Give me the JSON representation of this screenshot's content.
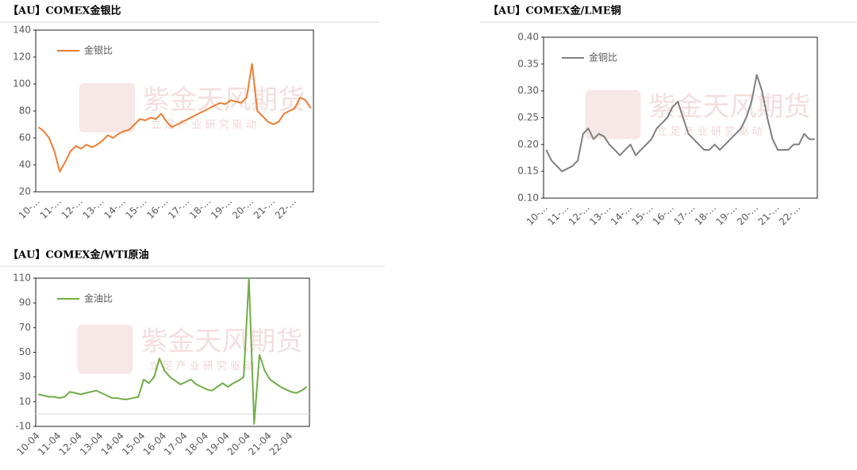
{
  "watermark": {
    "brand": "紫金天风期货",
    "slogan": "立 足 产 业 研 究 驱 动"
  },
  "chart_data": [
    {
      "type": "line",
      "title": "【AU】COMEX金银比",
      "x": [
        "10-04",
        "10-07",
        "10-10",
        "11-01",
        "11-04",
        "11-07",
        "11-10",
        "12-01",
        "12-04",
        "12-07",
        "12-10",
        "13-01",
        "13-04",
        "13-07",
        "13-10",
        "14-01",
        "14-04",
        "14-07",
        "14-10",
        "15-01",
        "15-04",
        "15-07",
        "15-10",
        "16-01",
        "16-04",
        "16-07",
        "16-10",
        "17-01",
        "17-04",
        "17-07",
        "17-10",
        "18-01",
        "18-04",
        "18-07",
        "18-10",
        "19-01",
        "19-04",
        "19-07",
        "19-10",
        "20-01",
        "20-04",
        "20-07",
        "20-10",
        "21-01",
        "21-04",
        "21-07",
        "21-10",
        "22-01",
        "22-04",
        "22-07",
        "22-10",
        "23-01"
      ],
      "series": [
        {
          "name": "金银比",
          "color": "#ed7d31",
          "values": [
            68,
            65,
            60,
            50,
            35,
            42,
            50,
            54,
            52,
            55,
            53,
            55,
            58,
            62,
            60,
            63,
            65,
            66,
            70,
            74,
            73,
            75,
            74,
            78,
            72,
            68,
            70,
            72,
            74,
            76,
            78,
            80,
            82,
            84,
            86,
            85,
            88,
            87,
            86,
            90,
            115,
            80,
            76,
            72,
            70,
            72,
            78,
            80,
            82,
            90,
            88,
            82
          ]
        }
      ],
      "ylim": [
        20,
        140
      ],
      "yticks": [
        20,
        40,
        60,
        80,
        100,
        120,
        140
      ],
      "xticks": [
        {
          "value": "10-04",
          "label": "10-…"
        },
        {
          "value": "11-04",
          "label": "11-…"
        },
        {
          "value": "12-04",
          "label": "12-…"
        },
        {
          "value": "13-04",
          "label": "13-…"
        },
        {
          "value": "14-04",
          "label": "14-…"
        },
        {
          "value": "15-04",
          "label": "15-…"
        },
        {
          "value": "16-04",
          "label": "16-…"
        },
        {
          "value": "17-04",
          "label": "17-…"
        },
        {
          "value": "18-04",
          "label": "18-…"
        },
        {
          "value": "19-04",
          "label": "19-…"
        },
        {
          "value": "20-04",
          "label": "20-…"
        },
        {
          "value": "21-04",
          "label": "21-…"
        },
        {
          "value": "22-04",
          "label": "22-…"
        }
      ]
    },
    {
      "type": "line",
      "title": "【AU】COMEX金/LME铜",
      "x": [
        "10-04",
        "10-07",
        "10-10",
        "11-01",
        "11-04",
        "11-07",
        "11-10",
        "12-01",
        "12-04",
        "12-07",
        "12-10",
        "13-01",
        "13-04",
        "13-07",
        "13-10",
        "14-01",
        "14-04",
        "14-07",
        "14-10",
        "15-01",
        "15-04",
        "15-07",
        "15-10",
        "16-01",
        "16-04",
        "16-07",
        "16-10",
        "17-01",
        "17-04",
        "17-07",
        "17-10",
        "18-01",
        "18-04",
        "18-07",
        "18-10",
        "19-01",
        "19-04",
        "19-07",
        "19-10",
        "20-01",
        "20-04",
        "20-07",
        "20-10",
        "21-01",
        "21-04",
        "21-07",
        "21-10",
        "22-01",
        "22-04",
        "22-07",
        "22-10",
        "23-01"
      ],
      "series": [
        {
          "name": "金铜比",
          "color": "#7f7f7f",
          "values": [
            0.19,
            0.17,
            0.16,
            0.15,
            0.155,
            0.16,
            0.17,
            0.22,
            0.23,
            0.21,
            0.22,
            0.215,
            0.2,
            0.19,
            0.18,
            0.19,
            0.2,
            0.18,
            0.19,
            0.2,
            0.21,
            0.23,
            0.24,
            0.25,
            0.27,
            0.28,
            0.25,
            0.22,
            0.21,
            0.2,
            0.19,
            0.19,
            0.2,
            0.19,
            0.2,
            0.21,
            0.22,
            0.23,
            0.25,
            0.28,
            0.33,
            0.3,
            0.25,
            0.21,
            0.19,
            0.19,
            0.19,
            0.2,
            0.2,
            0.22,
            0.21,
            0.21
          ]
        }
      ],
      "ylim": [
        0.1,
        0.4
      ],
      "yticks": [
        {
          "value": 0.1,
          "label": "0.10"
        },
        {
          "value": 0.15,
          "label": "0.15"
        },
        {
          "value": 0.2,
          "label": "0.20"
        },
        {
          "value": 0.25,
          "label": "0.25"
        },
        {
          "value": 0.3,
          "label": "0.30"
        },
        {
          "value": 0.35,
          "label": "0.35"
        },
        {
          "value": 0.4,
          "label": "0.40"
        }
      ],
      "xticks": [
        {
          "value": "10-04",
          "label": "10-…"
        },
        {
          "value": "11-04",
          "label": "11-…"
        },
        {
          "value": "12-04",
          "label": "12-…"
        },
        {
          "value": "13-04",
          "label": "13-…"
        },
        {
          "value": "14-04",
          "label": "14-…"
        },
        {
          "value": "15-04",
          "label": "15-…"
        },
        {
          "value": "16-04",
          "label": "16-…"
        },
        {
          "value": "17-04",
          "label": "17-…"
        },
        {
          "value": "18-04",
          "label": "18-…"
        },
        {
          "value": "19-04",
          "label": "19-…"
        },
        {
          "value": "20-04",
          "label": "20-…"
        },
        {
          "value": "21-04",
          "label": "21-…"
        },
        {
          "value": "22-04",
          "label": "22-…"
        }
      ]
    },
    {
      "type": "line",
      "title": "【AU】COMEX金/WTI原油",
      "x": [
        "10-04",
        "10-07",
        "10-10",
        "11-01",
        "11-04",
        "11-07",
        "11-10",
        "12-01",
        "12-04",
        "12-07",
        "12-10",
        "13-01",
        "13-04",
        "13-07",
        "13-10",
        "14-01",
        "14-04",
        "14-07",
        "14-10",
        "15-01",
        "15-04",
        "15-07",
        "15-10",
        "16-01",
        "16-04",
        "16-07",
        "16-10",
        "17-01",
        "17-04",
        "17-07",
        "17-10",
        "18-01",
        "18-04",
        "18-07",
        "18-10",
        "19-01",
        "19-04",
        "19-07",
        "19-10",
        "20-01",
        "20-04",
        "20-07",
        "20-10",
        "21-01",
        "21-04",
        "21-07",
        "21-10",
        "22-01",
        "22-04",
        "22-07",
        "22-10",
        "23-01"
      ],
      "series": [
        {
          "name": "金油比",
          "color": "#70ad47",
          "values": [
            16,
            15,
            14,
            14,
            13,
            14,
            18,
            17,
            16,
            17,
            18,
            19,
            17,
            15,
            13,
            13,
            12,
            12,
            13,
            14,
            28,
            25,
            30,
            45,
            35,
            30,
            27,
            24,
            26,
            28,
            24,
            22,
            20,
            19,
            22,
            25,
            22,
            25,
            27,
            30,
            110,
            -8,
            48,
            35,
            28,
            25,
            22,
            20,
            18,
            17,
            19,
            22
          ]
        }
      ],
      "ylim": [
        -10,
        110
      ],
      "yticks": [
        -10,
        10,
        30,
        50,
        70,
        90,
        110
      ],
      "xticks": [
        "10-04",
        "11-04",
        "12-04",
        "13-04",
        "14-04",
        "15-04",
        "16-04",
        "17-04",
        "18-04",
        "19-04",
        "20-04",
        "21-04",
        "22-04"
      ]
    }
  ]
}
